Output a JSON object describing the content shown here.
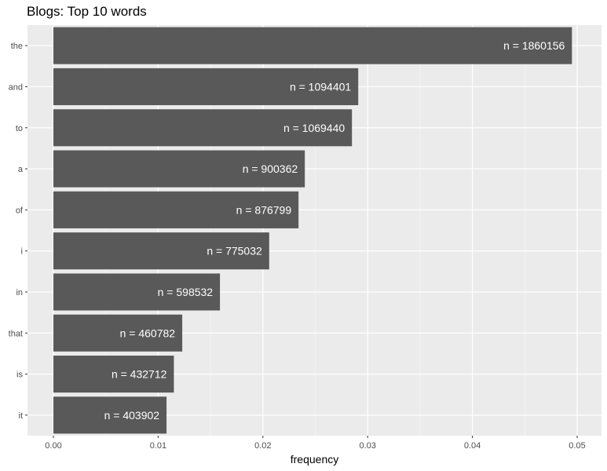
{
  "chart_data": {
    "type": "bar",
    "orientation": "horizontal",
    "title": "Blogs: Top 10 words",
    "xlabel": "frequency",
    "ylabel": "",
    "xlim": [
      0,
      0.05
    ],
    "x_ticks": [
      "0.00",
      "0.01",
      "0.02",
      "0.03",
      "0.04",
      "0.05"
    ],
    "grid": true,
    "categories": [
      "the",
      "and",
      "to",
      "a",
      "of",
      "i",
      "in",
      "that",
      "is",
      "it"
    ],
    "values": [
      0.0495,
      0.0291,
      0.0285,
      0.024,
      0.0234,
      0.0206,
      0.0159,
      0.0123,
      0.0115,
      0.0108
    ],
    "labels": [
      "n = 1860156",
      "n = 1094401",
      "n = 1069440",
      "n = 900362",
      "n = 876799",
      "n = 775032",
      "n = 598532",
      "n = 460782",
      "n = 432712",
      "n = 403902"
    ],
    "colors": {
      "bar": "#595959",
      "panel": "#ebebeb",
      "grid_major": "#ffffff",
      "grid_minor": "#f5f5f5"
    }
  }
}
